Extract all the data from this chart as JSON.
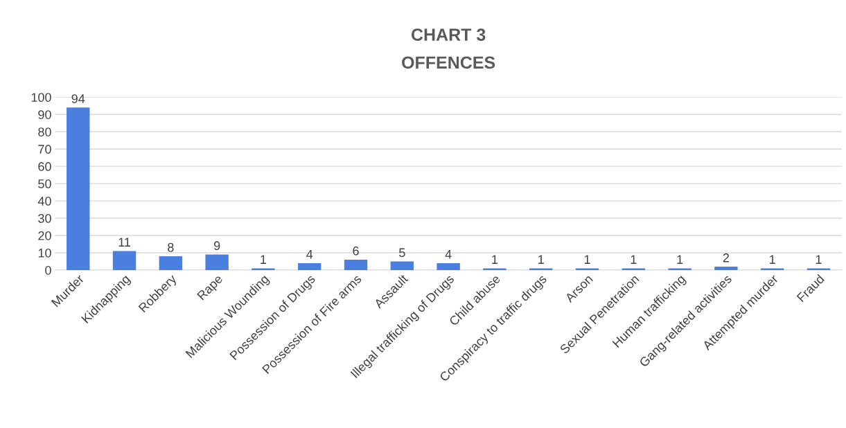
{
  "chart_data": {
    "type": "bar",
    "title": "CHART 3",
    "subtitle": "OFFENCES",
    "categories": [
      "Murder",
      "Kidnapping",
      "Robbery",
      "Rape",
      "Malicious Wounding",
      "Possession of Drugs",
      "Possession of Fire arms",
      "Assault",
      "Illegal trafficking of Drugs",
      "Child abuse",
      "Conspiracy to traffic drugs",
      "Arson",
      "Sexual Penetration",
      "Human trafficking",
      "Gang-related activities",
      "Attempted murder",
      "Fraud"
    ],
    "values": [
      94,
      11,
      8,
      9,
      1,
      4,
      6,
      5,
      4,
      1,
      1,
      1,
      1,
      1,
      2,
      1,
      1
    ],
    "color": "#4a7fe0",
    "ylim": [
      0,
      100
    ],
    "yticks": [
      0,
      10,
      20,
      30,
      40,
      50,
      60,
      70,
      80,
      90,
      100
    ],
    "grid": "y",
    "data_labels": true,
    "legend": false
  }
}
